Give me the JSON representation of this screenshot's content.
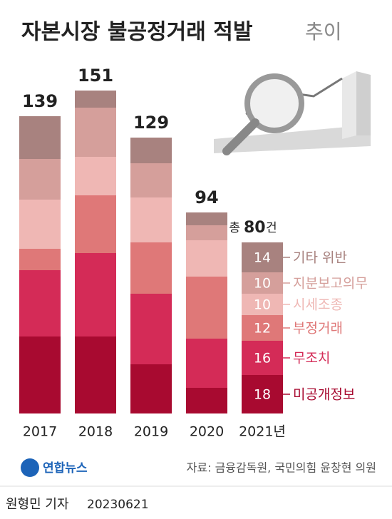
{
  "chart_data": {
    "type": "bar",
    "stacked": true,
    "title": "자본시장 불공정거래 적발",
    "title_suffix": "추이",
    "categories": [
      "2017",
      "2018",
      "2019",
      "2020",
      "2021년"
    ],
    "series": [
      {
        "name": "미공개정보",
        "color": "#a80a30",
        "values": [
          36,
          36,
          23,
          12,
          18
        ]
      },
      {
        "name": "무조치",
        "color": "#d42b57",
        "values": [
          31,
          39,
          33,
          23,
          16
        ]
      },
      {
        "name": "부정거래",
        "color": "#df7878",
        "values": [
          10,
          27,
          24,
          29,
          12
        ]
      },
      {
        "name": "시세조종",
        "color": "#efb7b4",
        "values": [
          23,
          18,
          21,
          17,
          10
        ]
      },
      {
        "name": "지분보고의무",
        "color": "#d59f9b",
        "values": [
          19,
          23,
          16,
          7,
          10
        ]
      },
      {
        "name": "기타 위반",
        "color": "#a8827f",
        "values": [
          20,
          8,
          12,
          6,
          14
        ]
      }
    ],
    "totals": [
      139,
      151,
      129,
      94,
      80
    ],
    "total_prefix": "총",
    "total_unit": "건",
    "source": "자료: 금융감독원, 국민의힘 윤창현 의원",
    "logo": "연합뉴스",
    "reporter": "원형민 기자",
    "date": "20230621"
  }
}
